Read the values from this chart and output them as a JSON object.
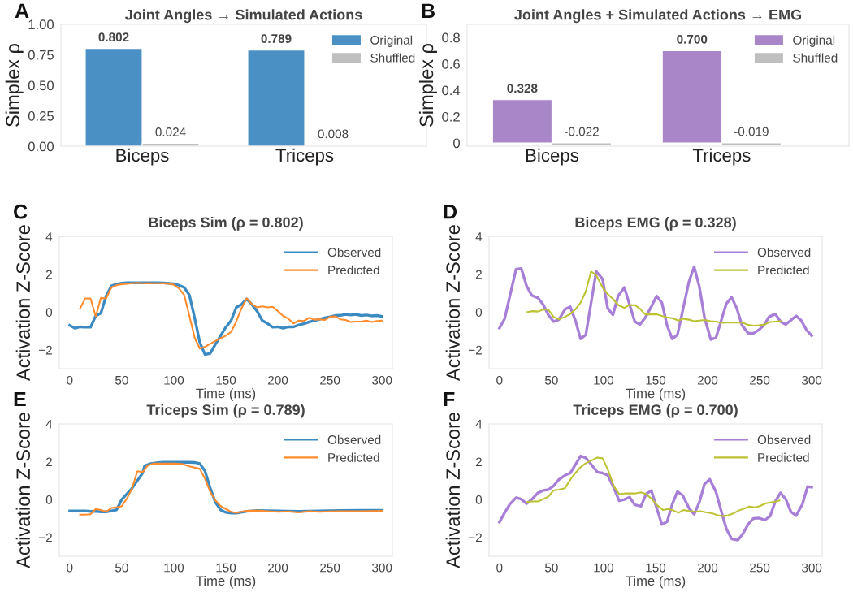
{
  "chart_data": [
    {
      "type": "bar",
      "title": "Joint Angles → Simulated Actions",
      "ylabel": "Simplex ρ",
      "annotations": [
        "A"
      ],
      "categories": [
        "Biceps",
        "Triceps"
      ],
      "ylim": [
        0,
        1.0
      ],
      "yticks": [
        {
          "value": 0,
          "label": "0.00"
        },
        {
          "value": 0.25,
          "label": "0.25"
        },
        {
          "value": 0.5,
          "label": "0.50"
        },
        {
          "value": 0.75,
          "label": "0.75"
        },
        {
          "value": 1.0,
          "label": "1.00"
        }
      ],
      "legend": "top right",
      "series": [
        {
          "name": "Original",
          "color": "#4a90c4",
          "values": [
            0.802,
            0.789
          ],
          "value_labels": [
            "0.802",
            "0.789"
          ]
        },
        {
          "name": "Shuffled",
          "color": "#bfbfbf",
          "values": [
            0.024,
            0.008
          ],
          "value_labels": [
            "0.024",
            "0.008"
          ]
        }
      ]
    },
    {
      "type": "bar",
      "title": "Joint Angles + Simulated Actions → EMG",
      "ylabel": "Simplex ρ",
      "annotations": [
        "B"
      ],
      "categories": [
        "Biceps",
        "Triceps"
      ],
      "ylim": [
        -0.025,
        0.9
      ],
      "yticks": [
        0,
        0.2,
        0.4,
        0.6,
        0.8
      ],
      "legend": "top right",
      "series": [
        {
          "name": "Original",
          "color": "#a886c8",
          "values": [
            0.328,
            0.7
          ],
          "value_labels": [
            "0.328",
            "0.700"
          ]
        },
        {
          "name": "Shuffled",
          "color": "#bfbfbf",
          "values": [
            -0.022,
            -0.019
          ],
          "value_labels": [
            "-0.022",
            "-0.019"
          ]
        }
      ]
    },
    {
      "type": "line",
      "title": "Biceps Sim (ρ = 0.802)",
      "xlabel": "Time (ms)",
      "ylabel": "Activation Z-Score",
      "annotations": [
        "C"
      ],
      "xlim": [
        -10,
        310
      ],
      "xticks": [
        0,
        50,
        100,
        150,
        200,
        250,
        300
      ],
      "ylim": [
        -3,
        4
      ],
      "yticks": [
        {
          "value": -2,
          "label": "−2"
        },
        0,
        2,
        4
      ],
      "legend": "top right",
      "series": [
        {
          "name": "Observed",
          "color": "#3b8bc2",
          "x": [
            0,
            5,
            10,
            15,
            20,
            25,
            30,
            35,
            40,
            45,
            50,
            55,
            60,
            65,
            70,
            75,
            80,
            85,
            90,
            95,
            100,
            105,
            110,
            115,
            120,
            125,
            130,
            135,
            140,
            145,
            150,
            155,
            160,
            165,
            170,
            175,
            180,
            185,
            190,
            195,
            200,
            205,
            210,
            215,
            220,
            225,
            230,
            235,
            240,
            245,
            250,
            255,
            260,
            265,
            270,
            275,
            280,
            285,
            290,
            295,
            300
          ],
          "values": [
            -0.7,
            -0.85,
            -0.78,
            -0.8,
            -0.8,
            -0.2,
            -0.05,
            0.85,
            1.38,
            1.48,
            1.53,
            1.55,
            1.55,
            1.55,
            1.55,
            1.55,
            1.55,
            1.55,
            1.54,
            1.52,
            1.5,
            1.42,
            1.3,
            0.9,
            -0.3,
            -1.6,
            -2.25,
            -2.18,
            -1.7,
            -1.25,
            -0.8,
            -0.45,
            0.25,
            0.4,
            0.7,
            0.4,
            0.05,
            -0.45,
            -0.6,
            -0.8,
            -0.78,
            -0.85,
            -0.78,
            -0.78,
            -0.68,
            -0.62,
            -0.52,
            -0.45,
            -0.38,
            -0.3,
            -0.25,
            -0.18,
            -0.17,
            -0.12,
            -0.15,
            -0.12,
            -0.18,
            -0.15,
            -0.2,
            -0.18,
            -0.23
          ]
        },
        {
          "name": "Predicted",
          "color": "#ff8b2c",
          "x": [
            10,
            15,
            20,
            25,
            30,
            35,
            40,
            45,
            50,
            55,
            60,
            65,
            70,
            75,
            80,
            85,
            90,
            95,
            100,
            105,
            110,
            115,
            120,
            125,
            130,
            135,
            140,
            145,
            150,
            155,
            160,
            165,
            170,
            175,
            180,
            185,
            190,
            195,
            200,
            205,
            210,
            215,
            220,
            225,
            230,
            235,
            240,
            245,
            250,
            255,
            260,
            265,
            270,
            275,
            280,
            285,
            290,
            295,
            300
          ],
          "values": [
            0.2,
            0.72,
            0.72,
            -0.22,
            0.75,
            0.72,
            1.3,
            1.42,
            1.47,
            1.5,
            1.53,
            1.55,
            1.53,
            1.52,
            1.53,
            1.53,
            1.52,
            1.5,
            1.45,
            1.25,
            0.9,
            -0.2,
            -1.35,
            -1.93,
            -1.83,
            -1.68,
            -1.53,
            -1.38,
            -1.25,
            -1.05,
            -0.5,
            0.2,
            0.72,
            0.42,
            0.25,
            0.3,
            0.25,
            0.28,
            0.05,
            -0.2,
            -0.35,
            -0.6,
            -0.45,
            -0.47,
            -0.3,
            -0.4,
            -0.38,
            -0.42,
            -0.25,
            -0.22,
            -0.38,
            -0.42,
            -0.52,
            -0.5,
            -0.5,
            -0.45,
            -0.52,
            -0.47,
            -0.45
          ]
        }
      ]
    },
    {
      "type": "line",
      "title": "Biceps EMG (ρ = 0.328)",
      "xlabel": "Time (ms)",
      "ylabel": "Activation Z-Score",
      "annotations": [
        "D"
      ],
      "xlim": [
        -10,
        310
      ],
      "xticks": [
        0,
        50,
        100,
        150,
        200,
        250,
        300
      ],
      "ylim": [
        -3,
        4
      ],
      "yticks": [
        {
          "value": -2,
          "label": "−2"
        },
        0,
        2,
        4
      ],
      "legend": "top right",
      "series": [
        {
          "name": "Observed",
          "color": "#a77fd6",
          "x": [
            0,
            5,
            16,
            21,
            26,
            31,
            37,
            42,
            47,
            52,
            57,
            63,
            68,
            73,
            78,
            83,
            93,
            99,
            104,
            109,
            114,
            120,
            125,
            130,
            135,
            140,
            146,
            151,
            156,
            161,
            166,
            171,
            182,
            187,
            192,
            197,
            203,
            208,
            218,
            223,
            228,
            233,
            239,
            244,
            249,
            254,
            259,
            265,
            270,
            275,
            285,
            290,
            295,
            300
          ],
          "values": [
            -0.85,
            -0.35,
            2.27,
            2.3,
            1.4,
            0.88,
            0.75,
            0.4,
            -0.15,
            -0.5,
            -0.4,
            0.15,
            0.28,
            -0.45,
            -1.42,
            -1.2,
            2.15,
            1.75,
            0.2,
            -0.15,
            0.85,
            1.3,
            0.4,
            -0.5,
            -0.65,
            -0.3,
            0.3,
            0.85,
            0.5,
            -0.7,
            -1.42,
            -1.2,
            1.6,
            2.4,
            1.35,
            -0.3,
            -1.45,
            -1.35,
            0.45,
            0.78,
            0.2,
            -0.7,
            -1.12,
            -1.12,
            -0.95,
            -0.7,
            -0.25,
            -0.1,
            -0.5,
            -0.65,
            -0.2,
            -0.45,
            -0.95,
            -1.25
          ]
        },
        {
          "name": "Predicted",
          "color": "#bcc232",
          "x": [
            27,
            31,
            37,
            42,
            47,
            52,
            57,
            63,
            68,
            73,
            78,
            83,
            88,
            93,
            99,
            104,
            109,
            114,
            120,
            125,
            130,
            135,
            140,
            146,
            151,
            156,
            161,
            166,
            172,
            176,
            182,
            187,
            192,
            197,
            203,
            208,
            213,
            218,
            223,
            229,
            234,
            239,
            244,
            249,
            255,
            260,
            265,
            270
          ],
          "values": [
            0.0,
            0.05,
            0.03,
            0.13,
            0.13,
            -0.25,
            -0.38,
            -0.25,
            -0.1,
            0.15,
            0.5,
            1.1,
            2.15,
            1.95,
            1.3,
            0.95,
            0.7,
            0.38,
            0.22,
            0.38,
            0.37,
            0.18,
            -0.12,
            -0.12,
            -0.12,
            -0.2,
            -0.28,
            -0.32,
            -0.45,
            -0.35,
            -0.4,
            -0.48,
            -0.45,
            -0.42,
            -0.48,
            -0.5,
            -0.57,
            -0.55,
            -0.55,
            -0.55,
            -0.57,
            -0.68,
            -0.72,
            -0.7,
            -0.65,
            -0.52,
            -0.5,
            -0.48
          ]
        }
      ]
    },
    {
      "type": "line",
      "title": "Triceps Sim (ρ = 0.789)",
      "xlabel": "Time (ms)",
      "ylabel": "Activation Z-Score",
      "annotations": [
        "E"
      ],
      "xlim": [
        -10,
        310
      ],
      "xticks": [
        0,
        50,
        100,
        150,
        200,
        250,
        300
      ],
      "ylim": [
        -3,
        4
      ],
      "yticks": [
        {
          "value": -2,
          "label": "−2"
        },
        0,
        2,
        4
      ],
      "legend": "top right",
      "series": [
        {
          "name": "Observed",
          "color": "#3b8bc2",
          "x": [
            0,
            10,
            15,
            20,
            25,
            30,
            35,
            40,
            45,
            50,
            55,
            60,
            65,
            70,
            72,
            78,
            85,
            90,
            100,
            110,
            115,
            120,
            125,
            130,
            135,
            140,
            145,
            150,
            155,
            160,
            170,
            180,
            200,
            220,
            240,
            260,
            280,
            300
          ],
          "values": [
            -0.6,
            -0.6,
            -0.6,
            -0.63,
            -0.62,
            -0.65,
            -0.65,
            -0.6,
            -0.55,
            0.0,
            0.3,
            0.6,
            1.0,
            1.4,
            1.78,
            1.9,
            1.95,
            1.97,
            1.97,
            1.97,
            1.97,
            1.96,
            1.9,
            1.5,
            0.6,
            -0.15,
            -0.55,
            -0.68,
            -0.72,
            -0.72,
            -0.62,
            -0.58,
            -0.6,
            -0.62,
            -0.6,
            -0.58,
            -0.57,
            -0.57
          ]
        },
        {
          "name": "Predicted",
          "color": "#ff8b2c",
          "x": [
            10,
            15,
            20,
            25,
            30,
            35,
            40,
            45,
            50,
            55,
            60,
            65,
            70,
            75,
            80,
            90,
            100,
            108,
            115,
            125,
            130,
            135,
            140,
            145,
            150,
            155,
            160,
            170,
            180,
            190,
            200,
            210,
            220,
            230,
            240,
            250,
            260,
            280,
            300
          ],
          "values": [
            -0.8,
            -0.8,
            -0.78,
            -0.5,
            -0.55,
            -0.65,
            -0.45,
            -0.42,
            -0.35,
            0.05,
            0.6,
            1.5,
            1.45,
            1.8,
            1.9,
            1.9,
            1.9,
            1.88,
            1.75,
            1.62,
            1.1,
            0.4,
            -0.05,
            -0.35,
            -0.5,
            -0.65,
            -0.7,
            -0.6,
            -0.58,
            -0.62,
            -0.65,
            -0.63,
            -0.68,
            -0.62,
            -0.65,
            -0.63,
            -0.62,
            -0.62,
            -0.6
          ]
        }
      ]
    },
    {
      "type": "line",
      "title": "Triceps EMG (ρ = 0.700)",
      "xlabel": "Time (ms)",
      "ylabel": "Activation Z-Score",
      "annotations": [
        "F"
      ],
      "xlim": [
        -10,
        310
      ],
      "xticks": [
        0,
        50,
        100,
        150,
        200,
        250,
        300
      ],
      "ylim": [
        -3,
        4
      ],
      "yticks": [
        {
          "value": -2,
          "label": "−2"
        },
        0,
        2,
        4
      ],
      "legend": "top right",
      "series": [
        {
          "name": "Observed",
          "color": "#a77fd6",
          "x": [
            0,
            5,
            10,
            16,
            21,
            26,
            31,
            37,
            42,
            47,
            52,
            57,
            63,
            68,
            73,
            78,
            83,
            89,
            94,
            99,
            104,
            110,
            115,
            120,
            125,
            130,
            136,
            141,
            146,
            151,
            156,
            161,
            166,
            171,
            176,
            182,
            187,
            192,
            197,
            202,
            208,
            213,
            218,
            223,
            229,
            234,
            239,
            244,
            249,
            255,
            260,
            265,
            270,
            275,
            280,
            285,
            291,
            296,
            300
          ],
          "values": [
            -1.2,
            -0.7,
            -0.25,
            0.1,
            0.02,
            -0.22,
            0.0,
            0.35,
            0.48,
            0.52,
            0.72,
            1.05,
            1.28,
            1.4,
            1.85,
            2.3,
            2.2,
            1.8,
            1.45,
            1.4,
            1.28,
            0.6,
            -0.07,
            0.0,
            0.12,
            -0.28,
            -0.35,
            0.3,
            0.47,
            -0.45,
            -1.32,
            -1.18,
            -0.25,
            0.42,
            0.22,
            -0.45,
            -0.78,
            -0.15,
            0.82,
            1.07,
            0.4,
            -0.6,
            -1.55,
            -2.08,
            -2.15,
            -1.8,
            -1.3,
            -1.0,
            -0.98,
            -1.08,
            -0.88,
            -0.1,
            0.35,
            0.02,
            -0.65,
            -0.85,
            -0.25,
            0.68,
            0.65
          ]
        },
        {
          "name": "Predicted",
          "color": "#bcc232",
          "x": [
            26,
            31,
            37,
            42,
            47,
            52,
            57,
            63,
            68,
            73,
            78,
            83,
            89,
            94,
            99,
            104,
            110,
            115,
            120,
            125,
            130,
            136,
            141,
            146,
            151,
            157,
            162,
            167,
            172,
            177,
            183,
            188,
            193,
            198,
            204,
            209,
            214,
            219,
            224,
            230,
            235,
            240,
            245,
            250,
            256,
            261,
            266,
            269
          ],
          "values": [
            -0.15,
            -0.1,
            -0.1,
            0.02,
            0.15,
            0.48,
            0.52,
            0.6,
            1.05,
            1.4,
            1.72,
            1.92,
            2.08,
            2.22,
            2.18,
            1.6,
            0.7,
            0.28,
            0.32,
            0.32,
            0.32,
            0.38,
            0.28,
            0.05,
            -0.28,
            -0.55,
            -0.5,
            -0.58,
            -0.7,
            -0.55,
            -0.62,
            -0.65,
            -0.62,
            -0.67,
            -0.72,
            -0.82,
            -0.88,
            -0.85,
            -0.75,
            -0.58,
            -0.48,
            -0.37,
            -0.42,
            -0.35,
            -0.2,
            -0.15,
            -0.1,
            -0.05
          ]
        }
      ]
    }
  ]
}
